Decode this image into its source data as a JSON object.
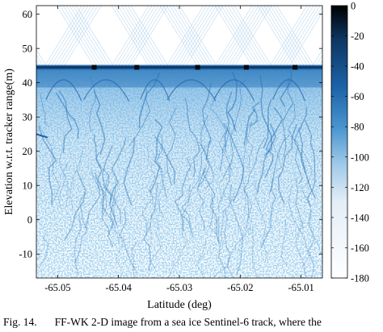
{
  "chart_data": {
    "type": "heatmap",
    "title": "",
    "xlabel": "Latitude (deg)",
    "ylabel": "Elevation w.r.t. tracker range(m)",
    "x_ticks": [
      -65.05,
      -65.04,
      -65.03,
      -65.02,
      -65.01
    ],
    "x_tick_labels": [
      "-65.05",
      "-65.04",
      "-65.03",
      "-65.02",
      "-65.01"
    ],
    "xlim": [
      -65.0535,
      -65.0065
    ],
    "y_ticks": [
      -10,
      0,
      10,
      20,
      30,
      40,
      50,
      60
    ],
    "y_tick_labels": [
      "-10",
      "0",
      "10",
      "20",
      "30",
      "40",
      "50",
      "60"
    ],
    "ylim": [
      -17,
      62.5
    ],
    "surface_elevation": 44.5,
    "colorbar": {
      "ticks": [
        0,
        -20,
        -40,
        -60,
        -80,
        -100,
        -120,
        -140,
        -160,
        -180
      ],
      "tick_labels": [
        "0",
        "-20",
        "-40",
        "-60",
        "-80",
        "-100",
        "-120",
        "-140",
        "-160",
        "-180"
      ],
      "range": [
        -180,
        0
      ],
      "colors": [
        "#ffffff",
        "#e3eef8",
        "#9ec9e9",
        "#4a95d0",
        "#1c63a8",
        "#0d3560",
        "#000000"
      ]
    },
    "grid": false,
    "legend": "none"
  },
  "caption": {
    "label": "Fig. 14.",
    "text": "FF-WK 2-D image from a sea ice Sentinel-6 track, where the"
  }
}
